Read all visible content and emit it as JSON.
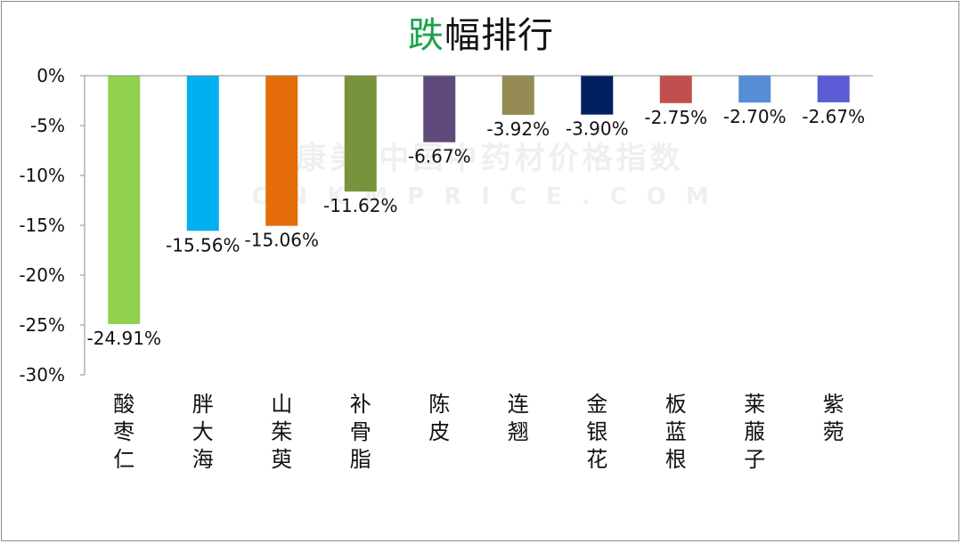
{
  "chart_data": {
    "type": "bar",
    "title_parts": [
      "跌",
      "幅排行"
    ],
    "title_accent_color": "#1aa34a",
    "categories": [
      "酸枣仁",
      "胖大海",
      "山茱萸",
      "补骨脂",
      "陈皮",
      "连翘",
      "金银花",
      "板蓝根",
      "莱菔子",
      "紫菀"
    ],
    "values": [
      -24.91,
      -15.56,
      -15.06,
      -11.62,
      -6.67,
      -3.92,
      -3.9,
      -2.75,
      -2.7,
      -2.67
    ],
    "value_labels": [
      "-24.91%",
      "-15.56%",
      "-15.06%",
      "-11.62%",
      "-6.67%",
      "-3.92%",
      "-3.90%",
      "-2.75%",
      "-2.70%",
      "-2.67%"
    ],
    "colors": [
      "#92d050",
      "#00b0f0",
      "#e46c0a",
      "#77933c",
      "#604a7b",
      "#948a54",
      "#002060",
      "#c0504d",
      "#558ed5",
      "#5b5bd6"
    ],
    "ylim": [
      -30,
      0
    ],
    "yticks": [
      0,
      -5,
      -10,
      -15,
      -20,
      -25,
      -30
    ],
    "ytick_labels": [
      "0%",
      "-5%",
      "-10%",
      "-15%",
      "-20%",
      "-25%",
      "-30%"
    ],
    "xlabel": "",
    "ylabel": "",
    "grid": false,
    "legend": "none"
  },
  "watermark": {
    "line1": "康美·中国中药材价格指数",
    "line2": "CNKMPRICE.COM"
  }
}
